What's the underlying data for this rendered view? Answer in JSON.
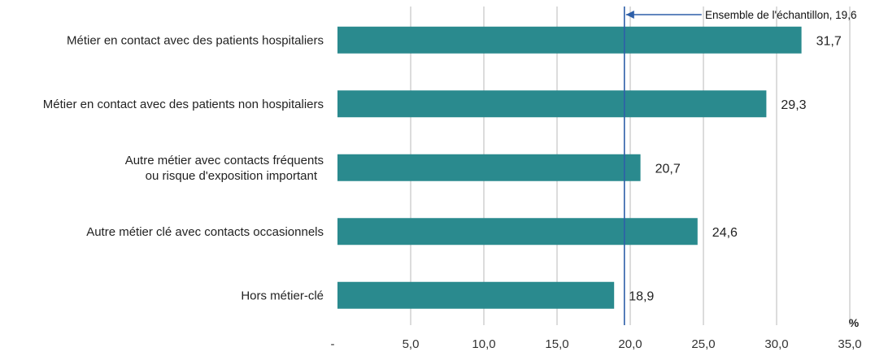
{
  "chart_data": {
    "type": "bar",
    "orientation": "horizontal",
    "categories": [
      [
        "Métier en contact avec des patients hospitaliers"
      ],
      [
        "Métier en contact avec des patients non hospitaliers"
      ],
      [
        "Autre métier avec contacts fréquents",
        "ou risque d'exposition important"
      ],
      [
        "Autre métier clé avec contacts occasionnels"
      ],
      [
        "Hors métier-clé"
      ]
    ],
    "values": [
      31.7,
      29.3,
      20.7,
      24.6,
      18.9
    ],
    "value_labels": [
      "31,7",
      "29,3",
      "20,7",
      "24,6",
      "18,9"
    ],
    "xlim": [
      0,
      35
    ],
    "x_ticks": [
      0,
      5,
      10,
      15,
      20,
      25,
      30,
      35
    ],
    "x_tick_labels": [
      "-",
      "5,0",
      "10,0",
      "15,0",
      "20,0",
      "25,0",
      "30,0",
      "35,0"
    ],
    "x_unit": "%",
    "grid": true,
    "reference_line": {
      "value": 19.6,
      "label": "Ensemble de l'échantillon, 19,6"
    },
    "colors": {
      "bar": "#2a8a8e",
      "grid": "#d0d0d0",
      "reference": "#2e5fa8"
    }
  }
}
